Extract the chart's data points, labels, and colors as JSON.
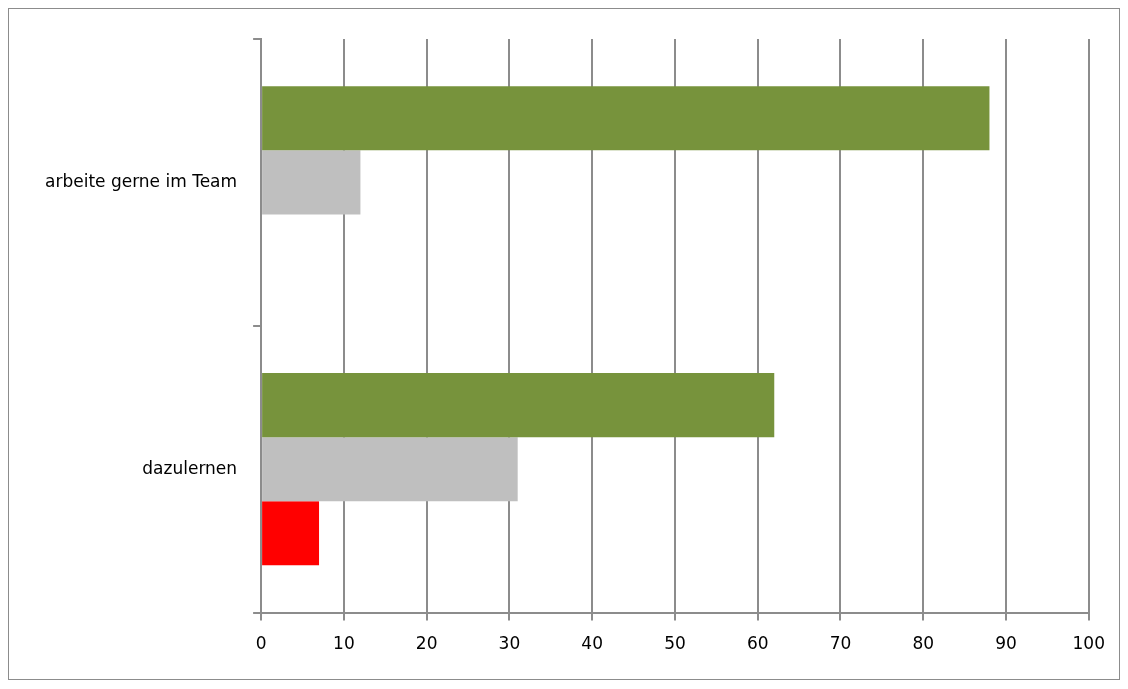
{
  "chart_data": {
    "type": "bar",
    "orientation": "horizontal",
    "categories": [
      "arbeite gerne im Team",
      "dazulernen"
    ],
    "series": [
      {
        "color": "#77933c",
        "values": [
          88,
          62
        ]
      },
      {
        "color": "#bfbfbf",
        "values": [
          12,
          31
        ]
      },
      {
        "color": "#ff0000",
        "values": [
          0,
          7
        ]
      }
    ],
    "xlim": [
      0,
      100
    ],
    "xticks": [
      0,
      10,
      20,
      30,
      40,
      50,
      60,
      70,
      80,
      90,
      100
    ],
    "grid": "x",
    "legend": false
  }
}
